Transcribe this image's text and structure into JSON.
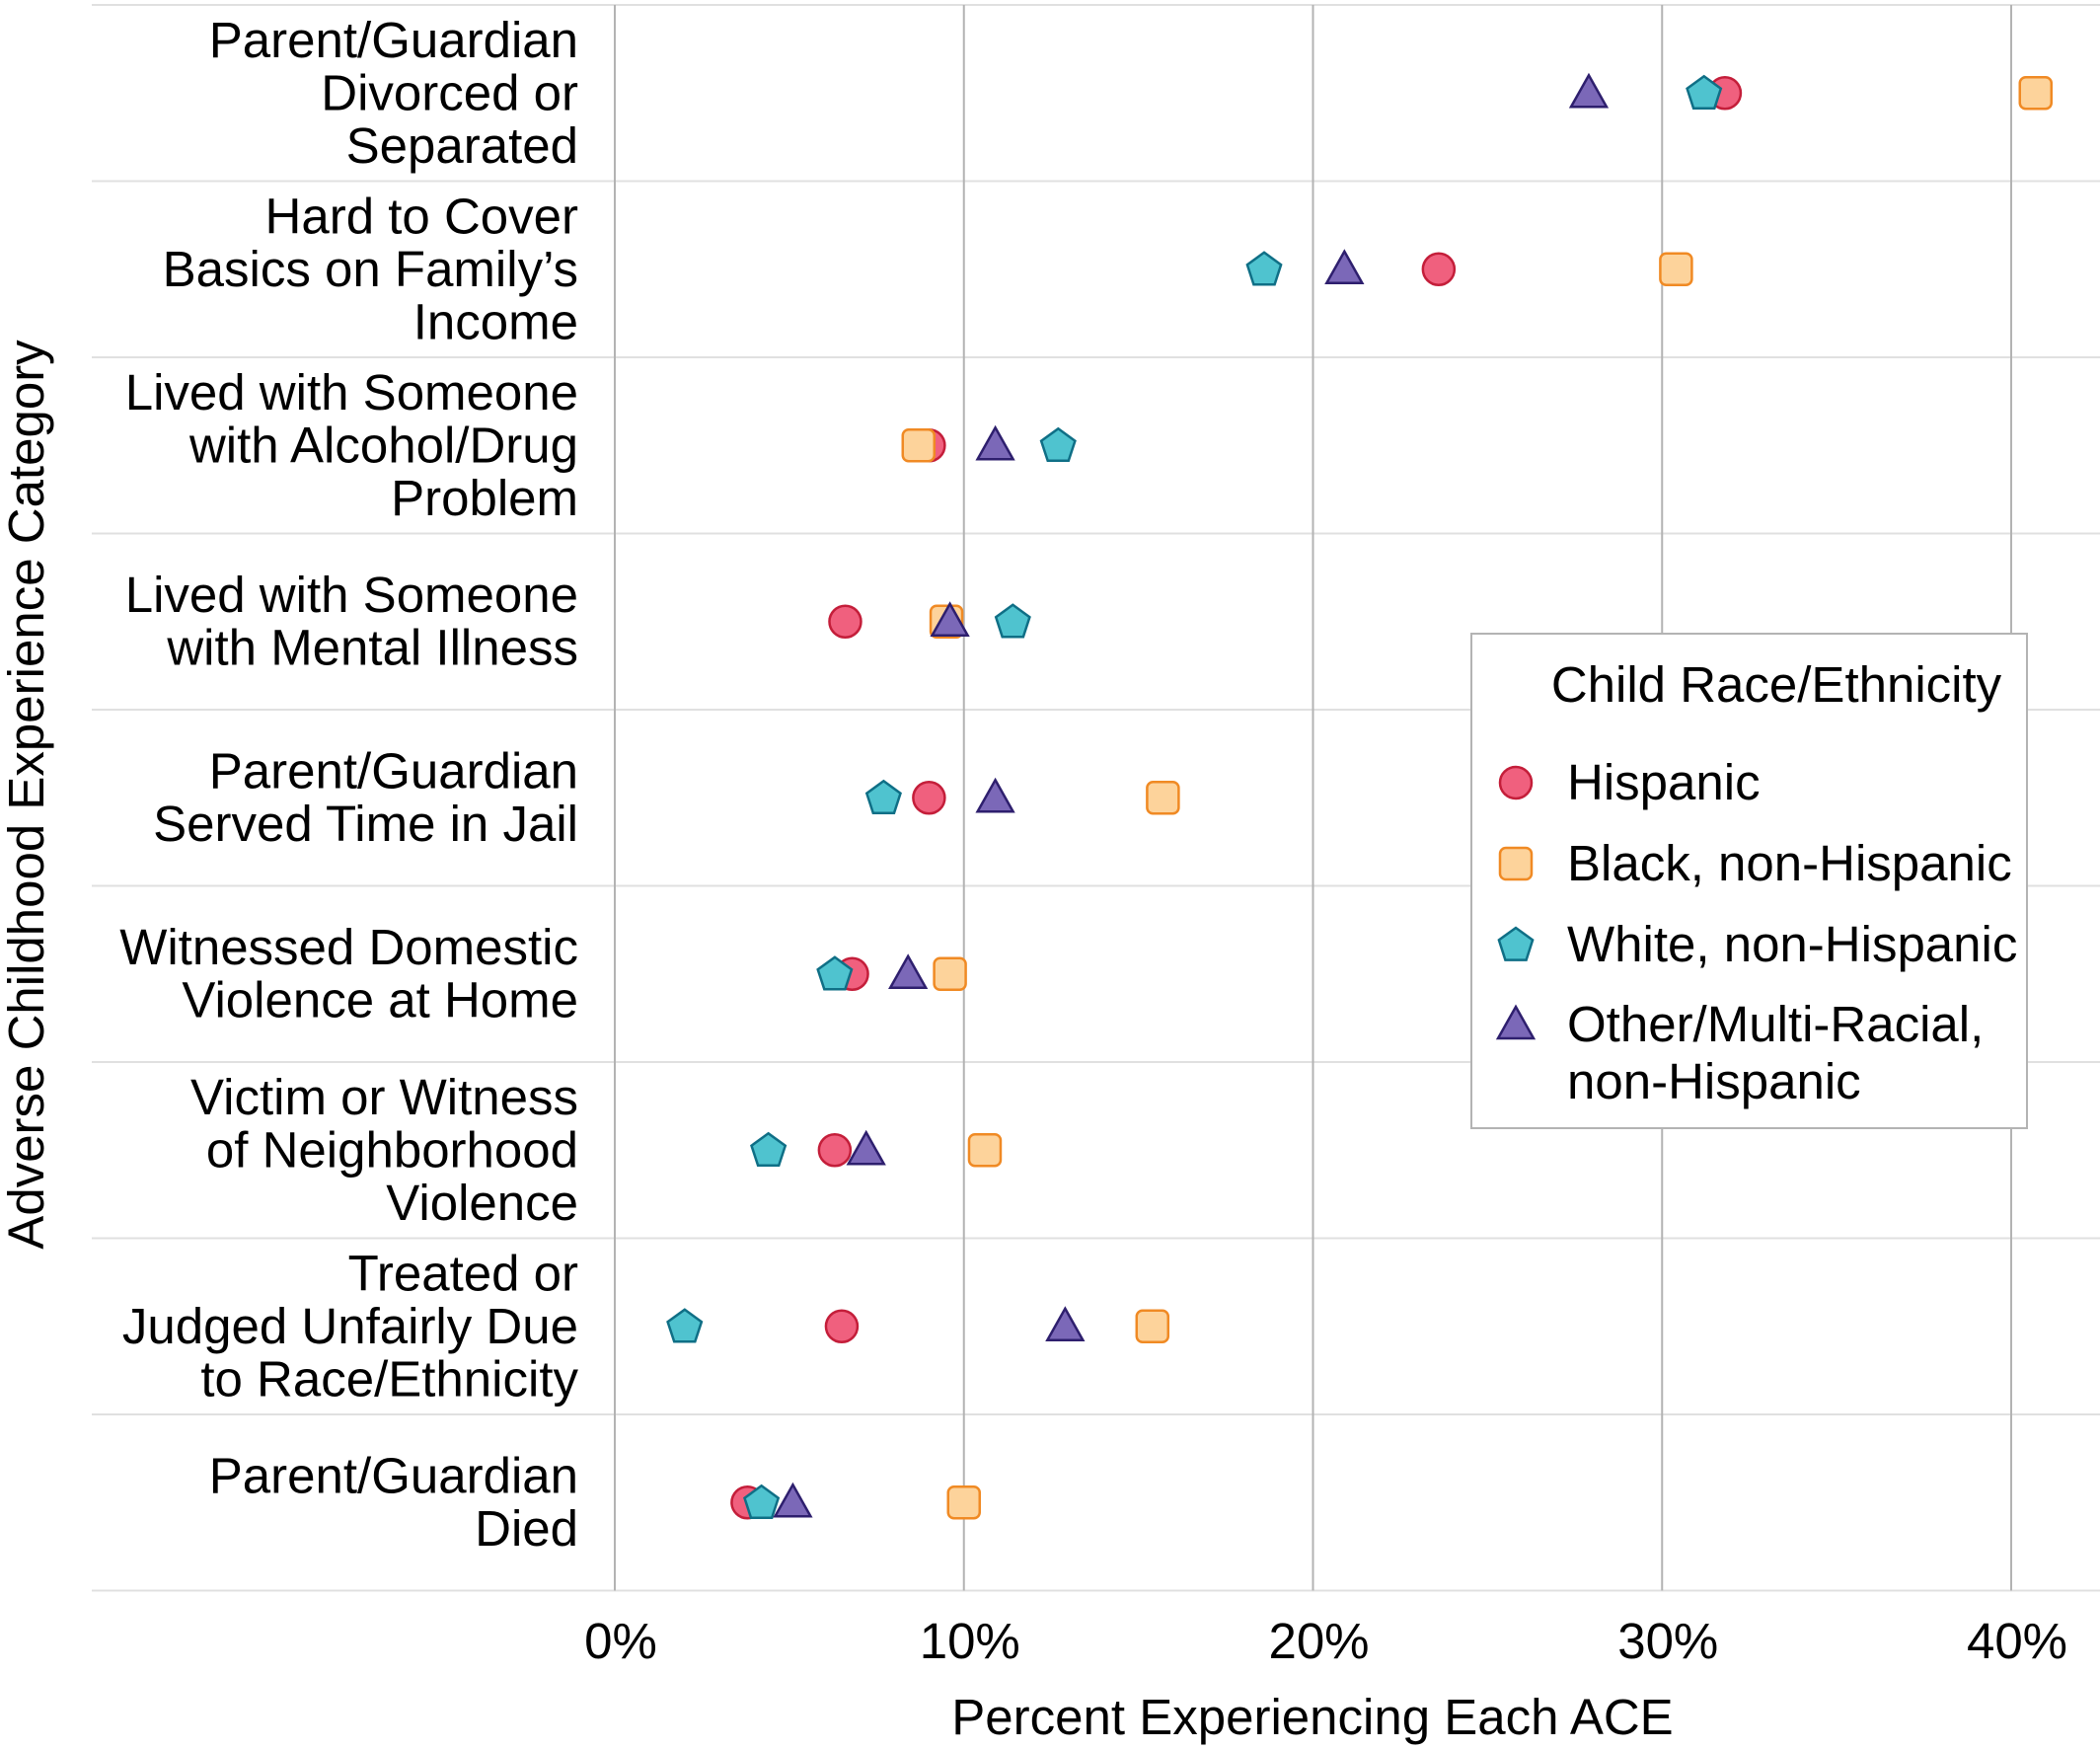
{
  "chart_data": {
    "type": "scatter",
    "title": "",
    "xlabel": "Percent Experiencing Each ACE",
    "ylabel": "Adverse Childhood Experience Category",
    "xlim": [
      -15,
      42
    ],
    "ticks": [
      {
        "value": 0,
        "label": "0%"
      },
      {
        "value": 10,
        "label": "10%"
      },
      {
        "value": 20,
        "label": "20%"
      },
      {
        "value": 30,
        "label": "30%"
      },
      {
        "value": 40,
        "label": "40%"
      }
    ],
    "grid": true,
    "legend_position": "right",
    "legend_title": "Child Race/Ethnicity",
    "categories": [
      {
        "lines": [
          "Parent/Guardian",
          "Divorced or",
          "Separated"
        ]
      },
      {
        "lines": [
          "Hard to Cover",
          "Basics on Family’s",
          "Income"
        ]
      },
      {
        "lines": [
          "Lived with Someone",
          "with Alcohol/Drug",
          "Problem"
        ]
      },
      {
        "lines": [
          "Lived with Someone",
          "with Mental Illness"
        ]
      },
      {
        "lines": [
          "Parent/Guardian",
          "Served Time in Jail"
        ]
      },
      {
        "lines": [
          "Witnessed Domestic",
          "Violence at Home"
        ]
      },
      {
        "lines": [
          "Victim or Witness",
          "of Neighborhood",
          "Violence"
        ]
      },
      {
        "lines": [
          "Treated or",
          "Judged Unfairly Due",
          "to Race/Ethnicity"
        ]
      },
      {
        "lines": [
          "Parent/Guardian",
          "Died"
        ]
      }
    ],
    "series": [
      {
        "name": "Hispanic",
        "legend_lines": [
          "Hispanic"
        ],
        "marker": "circle",
        "fill": "#f0607e",
        "stroke": "#c41e3a",
        "values": [
          31.8,
          23.6,
          9.0,
          6.6,
          9.0,
          6.8,
          6.3,
          6.5,
          3.8
        ]
      },
      {
        "name": "Black, non-Hispanic",
        "legend_lines": [
          "Black, non-Hispanic"
        ],
        "marker": "square",
        "fill": "#fdd39b",
        "stroke": "#f08a24",
        "values": [
          40.7,
          30.4,
          8.7,
          9.5,
          15.7,
          9.6,
          10.6,
          15.4,
          10.0
        ]
      },
      {
        "name": "White, non-Hispanic",
        "legend_lines": [
          "White, non-Hispanic"
        ],
        "marker": "pentagon",
        "fill": "#4fc3cf",
        "stroke": "#0f6f86",
        "values": [
          31.2,
          18.6,
          12.7,
          11.4,
          7.7,
          6.3,
          4.4,
          2.0,
          4.2
        ]
      },
      {
        "name": "Other/Multi-Racial, non-Hispanic",
        "legend_lines": [
          "Other/Multi-Racial,",
          "non-Hispanic"
        ],
        "marker": "triangle",
        "fill": "#7b68b8",
        "stroke": "#2e1f6e",
        "values": [
          27.9,
          20.9,
          10.9,
          9.6,
          10.9,
          8.4,
          7.2,
          12.9,
          5.1
        ]
      }
    ]
  }
}
